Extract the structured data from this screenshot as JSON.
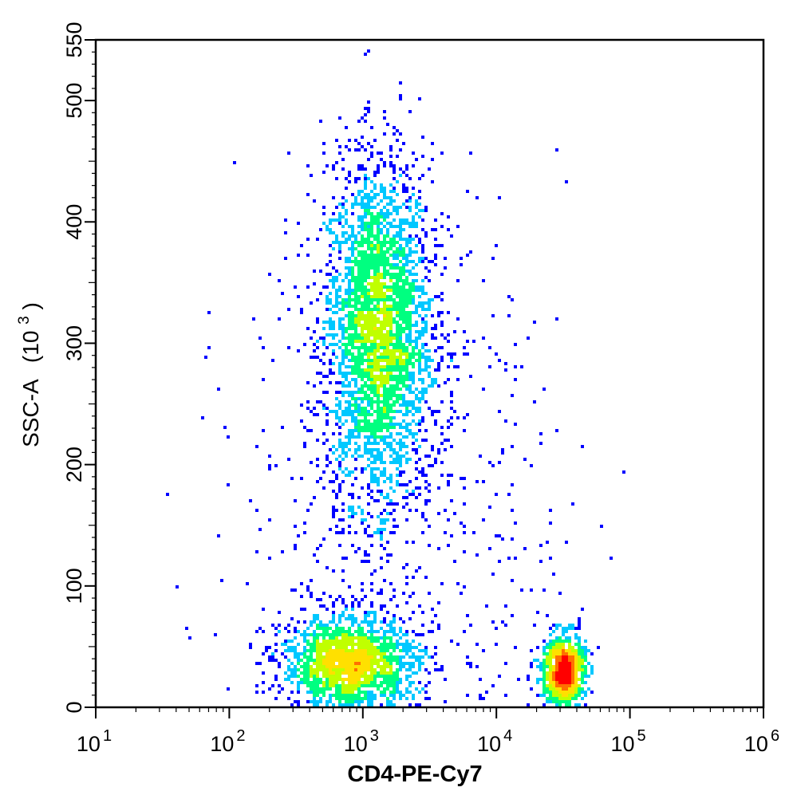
{
  "chart_data": {
    "type": "scatter",
    "subtype": "density-colored dot plot (flow cytometry)",
    "xlabel": "CD4-PE-Cy7",
    "ylabel": "SSC-A",
    "ylabel_unit_base": "(10",
    "ylabel_unit_exp": "3",
    "ylabel_unit_close": ")",
    "x_scale": "log",
    "xlim": [
      10,
      1000000
    ],
    "x_ticks": [
      {
        "base": "10",
        "exp": "1",
        "value": 10
      },
      {
        "base": "10",
        "exp": "2",
        "value": 100
      },
      {
        "base": "10",
        "exp": "3",
        "value": 1000
      },
      {
        "base": "10",
        "exp": "4",
        "value": 10000
      },
      {
        "base": "10",
        "exp": "5",
        "value": 100000
      },
      {
        "base": "10",
        "exp": "6",
        "value": 1000000
      }
    ],
    "y_scale": "linear",
    "ylim": [
      0,
      550
    ],
    "y_ticks": [
      "0",
      "100",
      "200",
      "300",
      "400",
      "500",
      "550"
    ],
    "y_tick_values": [
      0,
      100,
      200,
      300,
      400,
      500,
      550
    ],
    "grid": false,
    "legend": "none",
    "density_colors": [
      "#0000ff",
      "#00c8ff",
      "#00ff80",
      "#c0ff00",
      "#ffe000",
      "#ff7000",
      "#ff0000"
    ],
    "populations": [
      {
        "x_center": 1300,
        "x_log_sd": 0.2,
        "y_center": 310,
        "y_sd": 70,
        "events": 3200
      },
      {
        "x_center": 800,
        "x_log_sd": 0.25,
        "y_center": 35,
        "y_sd": 20,
        "events": 1800
      },
      {
        "x_center": 32000,
        "x_log_sd": 0.08,
        "y_center": 30,
        "y_sd": 15,
        "events": 900
      },
      {
        "x_center": 2000,
        "x_log_sd": 0.6,
        "y_center": 150,
        "y_sd": 130,
        "events": 700
      }
    ]
  }
}
